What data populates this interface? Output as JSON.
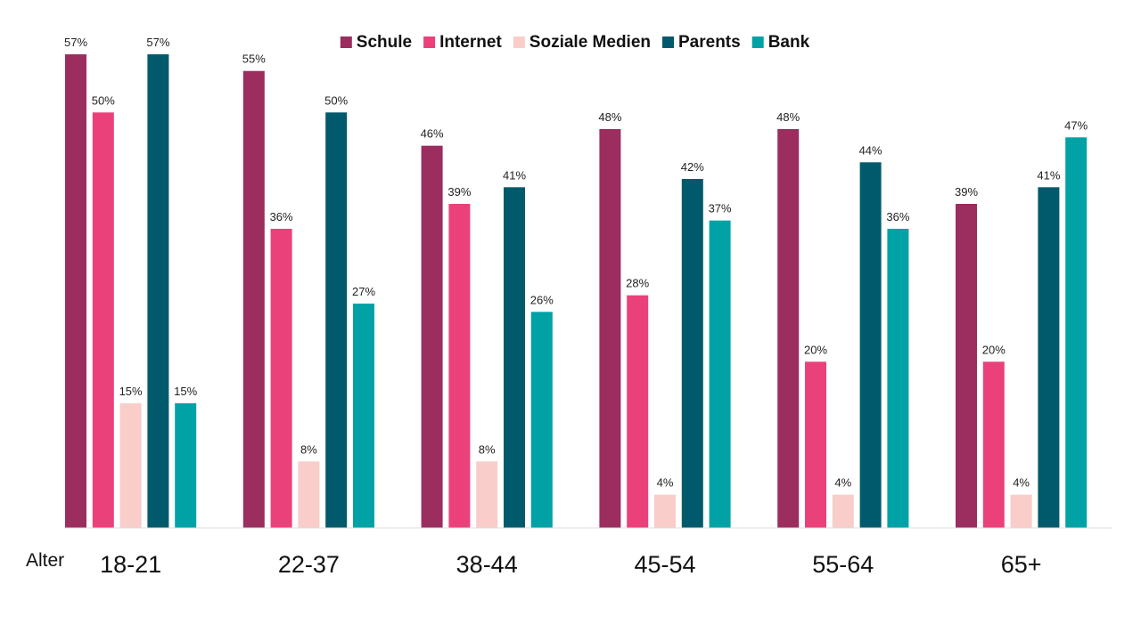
{
  "chart_data": {
    "type": "bar",
    "title": "",
    "xlabel": "Alter",
    "ylabel": "",
    "ylim": [
      0,
      57
    ],
    "grid": false,
    "legend_position": "top",
    "value_suffix": "%",
    "categories": [
      "18-21",
      "22-37",
      "38-44",
      "45-54",
      "55-64",
      "65+"
    ],
    "series": [
      {
        "name": "Schule",
        "color": "#9b2d5f",
        "values": [
          57,
          55,
          46,
          48,
          48,
          39
        ]
      },
      {
        "name": "Internet",
        "color": "#eb417a",
        "values": [
          50,
          36,
          39,
          28,
          20,
          20
        ]
      },
      {
        "name": "Soziale Medien",
        "color": "#f9cdc9",
        "values": [
          15,
          8,
          8,
          4,
          4,
          4
        ]
      },
      {
        "name": "Parents",
        "color": "#005a6b",
        "values": [
          57,
          50,
          41,
          42,
          44,
          41
        ]
      },
      {
        "name": "Bank",
        "color": "#00a2a6",
        "values": [
          15,
          27,
          26,
          37,
          36,
          47
        ]
      }
    ]
  }
}
